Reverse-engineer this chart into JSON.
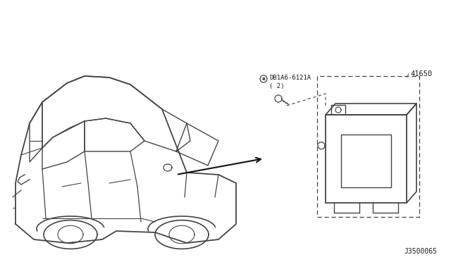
{
  "bg_color": "#ffffff",
  "fig_width": 6.4,
  "fig_height": 3.72,
  "dpi": 100,
  "part_label_1": "DB1A6-6121A",
  "part_label_1b": "( 2)",
  "part_label_2": "41650",
  "diagram_code": "J3500065",
  "text_color": "#1a1a1a",
  "line_color": "#444444",
  "arrow_color": "#111111"
}
